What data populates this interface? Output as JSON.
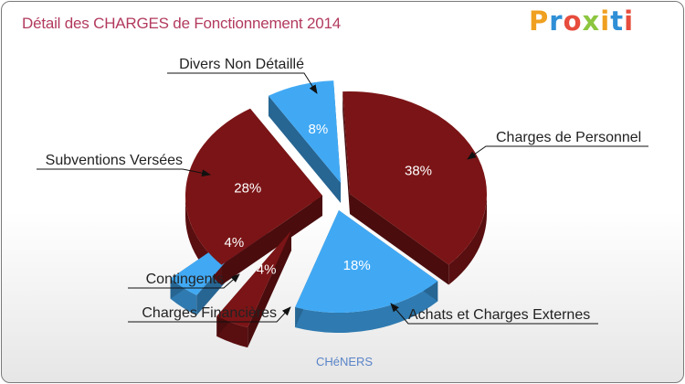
{
  "title": "Détail des CHARGES de Fonctionnement 2014",
  "logo": {
    "text": "Proxiti",
    "colors": [
      "#f0a020",
      "#2f8fd6",
      "#e74c3c",
      "#8cc63f",
      "#f0a020",
      "#2f8fd6",
      "#e74c3c"
    ]
  },
  "footer": "CHéNERS",
  "colors": {
    "dark": "#7b1416",
    "blue": "#41a9f4",
    "title": "#b23a5e"
  },
  "chart_data": {
    "type": "pie",
    "title": "Détail des CHARGES de Fonctionnement 2014",
    "subtitle": "CHéNERS",
    "series": [
      {
        "name": "Charges de Personnel",
        "value": 38,
        "label": "38%",
        "color": "#7b1416"
      },
      {
        "name": "Achats et Charges Externes",
        "value": 18,
        "label": "18%",
        "color": "#41a9f4"
      },
      {
        "name": "Charges Financières",
        "value": 4,
        "label": "4%",
        "color": "#7b1416"
      },
      {
        "name": "Contingents",
        "value": 4,
        "label": "4%",
        "color": "#41a9f4"
      },
      {
        "name": "Subventions Versées",
        "value": 28,
        "label": "28%",
        "color": "#7b1416"
      },
      {
        "name": "Divers Non Détaillé",
        "value": 8,
        "label": "8%",
        "color": "#41a9f4"
      }
    ]
  }
}
